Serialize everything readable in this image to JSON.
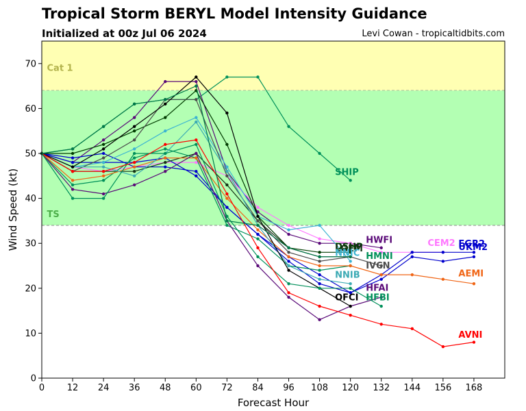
{
  "header": {
    "title": "Tropical Storm BERYL Model Intensity Guidance",
    "subtitle": "Initialized at 00z Jul 06 2024",
    "credit": "Levi Cowan - tropicaltidbits.com"
  },
  "chart_data": {
    "type": "line",
    "xlabel": "Forecast Hour",
    "ylabel": "Wind Speed (kt)",
    "xlim": [
      0,
      180
    ],
    "ylim": [
      0,
      75
    ],
    "xticks": [
      0,
      12,
      24,
      36,
      48,
      60,
      72,
      84,
      96,
      108,
      120,
      132,
      144,
      156,
      168
    ],
    "yticks": [
      0,
      10,
      20,
      30,
      40,
      50,
      60,
      70
    ],
    "bands": [
      {
        "label": "Cat 1",
        "from": 64,
        "to": 75,
        "fill": "#ffffb3",
        "label_color": "#b3b34d"
      },
      {
        "label": "TS",
        "from": 34,
        "to": 64,
        "fill": "#b3ffb3",
        "label_color": "#4daf4a"
      }
    ],
    "series": [
      {
        "name": "SHIP",
        "color": "#00905a",
        "x": [
          0,
          12,
          24,
          36,
          48,
          60,
          72,
          84,
          96,
          108,
          120
        ],
        "y": [
          50,
          51,
          56,
          61,
          62,
          62,
          67,
          67,
          56,
          50,
          44
        ]
      },
      {
        "name": "HWFI",
        "color": "#5a0a78",
        "x": [
          0,
          12,
          24,
          36,
          48,
          60,
          72,
          84,
          96,
          108,
          120,
          132
        ],
        "y": [
          50,
          48,
          53,
          58,
          66,
          66,
          46,
          37,
          32,
          30,
          30,
          29
        ]
      },
      {
        "name": "CEM2",
        "color": "#ff78ff",
        "x": [
          0,
          12,
          24,
          36,
          48,
          60,
          72,
          84,
          96,
          108,
          120,
          132,
          144,
          156
        ],
        "y": [
          50,
          47,
          46,
          47,
          48,
          48,
          45,
          38,
          34,
          31,
          30,
          28,
          28,
          28
        ]
      },
      {
        "name": "EGR2",
        "color": "#0000cd",
        "x": [
          0,
          12,
          24,
          36,
          48,
          60,
          72,
          84,
          96,
          108,
          120,
          132,
          144,
          156,
          168
        ],
        "y": [
          50,
          49,
          50,
          47,
          47,
          46,
          38,
          32,
          27,
          23,
          19,
          23,
          28,
          28,
          28
        ]
      },
      {
        "name": "UKM2",
        "color": "#0000cd",
        "x": [
          0,
          12,
          24,
          36,
          48,
          60,
          72,
          84,
          96,
          108,
          120,
          132,
          144,
          156,
          168
        ],
        "y": [
          50,
          48,
          48,
          48,
          49,
          45,
          38,
          32,
          26,
          21,
          19,
          22,
          27,
          26,
          27
        ]
      },
      {
        "name": "DSHP",
        "color": "#003c00",
        "x": [
          0,
          12,
          24,
          36,
          48,
          60,
          72,
          84,
          96,
          108,
          120
        ],
        "y": [
          50,
          50,
          52,
          55,
          58,
          64,
          52,
          36,
          29,
          28,
          28
        ]
      },
      {
        "name": "LGEM",
        "color": "#143214",
        "x": [
          0,
          12,
          24,
          36,
          48,
          60,
          72,
          84,
          96,
          108,
          120
        ],
        "y": [
          50,
          46,
          46,
          46,
          48,
          50,
          43,
          35,
          29,
          27,
          27
        ]
      },
      {
        "name": "NNIC",
        "color": "#3cb4d2",
        "x": [
          0,
          12,
          24,
          36,
          48,
          60,
          72,
          84,
          96,
          108,
          120
        ],
        "y": [
          50,
          47,
          48,
          51,
          55,
          58,
          47,
          36,
          33,
          34,
          26
        ]
      },
      {
        "name": "HMNI",
        "color": "#00905a",
        "x": [
          0,
          12,
          24,
          36,
          48,
          60,
          72,
          84,
          96,
          108,
          120
        ],
        "y": [
          50,
          43,
          44,
          49,
          51,
          49,
          34,
          31,
          25,
          24,
          25
        ]
      },
      {
        "name": "IVCN",
        "color": "#4b4b4b",
        "x": [
          0,
          12,
          24,
          36,
          48,
          60,
          72,
          84,
          96,
          108,
          120,
          132
        ],
        "y": [
          50,
          46,
          49,
          53,
          62,
          62,
          45,
          35,
          28,
          26,
          27,
          25
        ]
      },
      {
        "name": "AEMI",
        "color": "#f06414",
        "x": [
          0,
          12,
          24,
          36,
          48,
          60,
          72,
          84,
          96,
          108,
          120,
          132,
          144,
          156,
          168
        ],
        "y": [
          50,
          44,
          45,
          47,
          49,
          49,
          40,
          33,
          27,
          25,
          25,
          23,
          23,
          22,
          21
        ]
      },
      {
        "name": "NNIB",
        "color": "#3caab4",
        "x": [
          0,
          12,
          24,
          36,
          48,
          60,
          72,
          84,
          96,
          108,
          120
        ],
        "y": [
          50,
          47,
          47,
          45,
          50,
          57,
          46,
          34,
          25,
          22,
          21
        ]
      },
      {
        "name": "HFAI",
        "color": "#5a0a78",
        "x": [
          0,
          12,
          24,
          36,
          48,
          60,
          72,
          84,
          96,
          108,
          120,
          132
        ],
        "y": [
          50,
          42,
          41,
          43,
          46,
          50,
          35,
          25,
          18,
          13,
          16,
          18
        ]
      },
      {
        "name": "OFCI",
        "color": "#000000",
        "x": [
          0,
          12,
          24,
          36,
          48,
          60,
          72,
          84,
          96,
          108,
          120
        ],
        "y": [
          50,
          47,
          51,
          56,
          61,
          67,
          59,
          36,
          24,
          20,
          16
        ]
      },
      {
        "name": "HFBI",
        "color": "#00905a",
        "x": [
          0,
          12,
          24,
          36,
          48,
          60,
          72,
          84,
          96,
          108,
          120,
          132
        ],
        "y": [
          50,
          40,
          40,
          50,
          50,
          52,
          36,
          27,
          21,
          20,
          20,
          16
        ]
      },
      {
        "name": "AVNI",
        "color": "#ff0000",
        "x": [
          0,
          12,
          24,
          36,
          48,
          60,
          72,
          84,
          96,
          108,
          120,
          132,
          144,
          156,
          168
        ],
        "y": [
          50,
          46,
          46,
          48,
          52,
          53,
          41,
          29,
          19,
          16,
          14,
          12,
          11,
          7,
          8
        ]
      },
      {
        "name": "",
        "color": "#007848",
        "x": [
          0,
          12,
          24,
          36,
          48,
          60,
          72,
          84,
          96,
          108,
          120
        ],
        "y": [
          50,
          51,
          56,
          61,
          62,
          65,
          35,
          34,
          29,
          27,
          27
        ]
      }
    ],
    "labels": [
      {
        "text": "SHIP",
        "color": "#00905a",
        "x": 114,
        "y": 45.2,
        "anchor": "start"
      },
      {
        "text": "HWFI",
        "color": "#5a0a78",
        "x": 126,
        "y": 30.1,
        "anchor": "start"
      },
      {
        "text": "CEM2",
        "color": "#ff78ff",
        "x": 150,
        "y": 29.4,
        "anchor": "start"
      },
      {
        "text": "EGR2",
        "color": "#0000cd",
        "x": 162,
        "y": 29.3,
        "anchor": "start"
      },
      {
        "text": "UKM2",
        "color": "#0000cd",
        "x": 162,
        "y": 28.5,
        "anchor": "start"
      },
      {
        "text": "DSHP",
        "color": "#003c00",
        "x": 114,
        "y": 28.6,
        "anchor": "start"
      },
      {
        "text": "LGEM",
        "color": "#143214",
        "x": 114,
        "y": 28.2,
        "anchor": "start"
      },
      {
        "text": "NNIC",
        "color": "#3cb4d2",
        "x": 114,
        "y": 27.2,
        "anchor": "start"
      },
      {
        "text": "HMNI",
        "color": "#00905a",
        "x": 126,
        "y": 26.5,
        "anchor": "start"
      },
      {
        "text": "IVCN",
        "color": "#4b4b4b",
        "x": 126,
        "y": 24.4,
        "anchor": "start"
      },
      {
        "text": "AEMI",
        "color": "#f06414",
        "x": 162,
        "y": 22.6,
        "anchor": "start"
      },
      {
        "text": "NNIB",
        "color": "#3caab4",
        "x": 114,
        "y": 22.3,
        "anchor": "start"
      },
      {
        "text": "HFAI",
        "color": "#5a0a78",
        "x": 126,
        "y": 19.4,
        "anchor": "start"
      },
      {
        "text": "OFCI",
        "color": "#000000",
        "x": 114,
        "y": 17.3,
        "anchor": "start"
      },
      {
        "text": "HFBI",
        "color": "#00905a",
        "x": 126,
        "y": 17.3,
        "anchor": "start"
      },
      {
        "text": "AVNI",
        "color": "#ff0000",
        "x": 162,
        "y": 9.0,
        "anchor": "start"
      }
    ]
  }
}
